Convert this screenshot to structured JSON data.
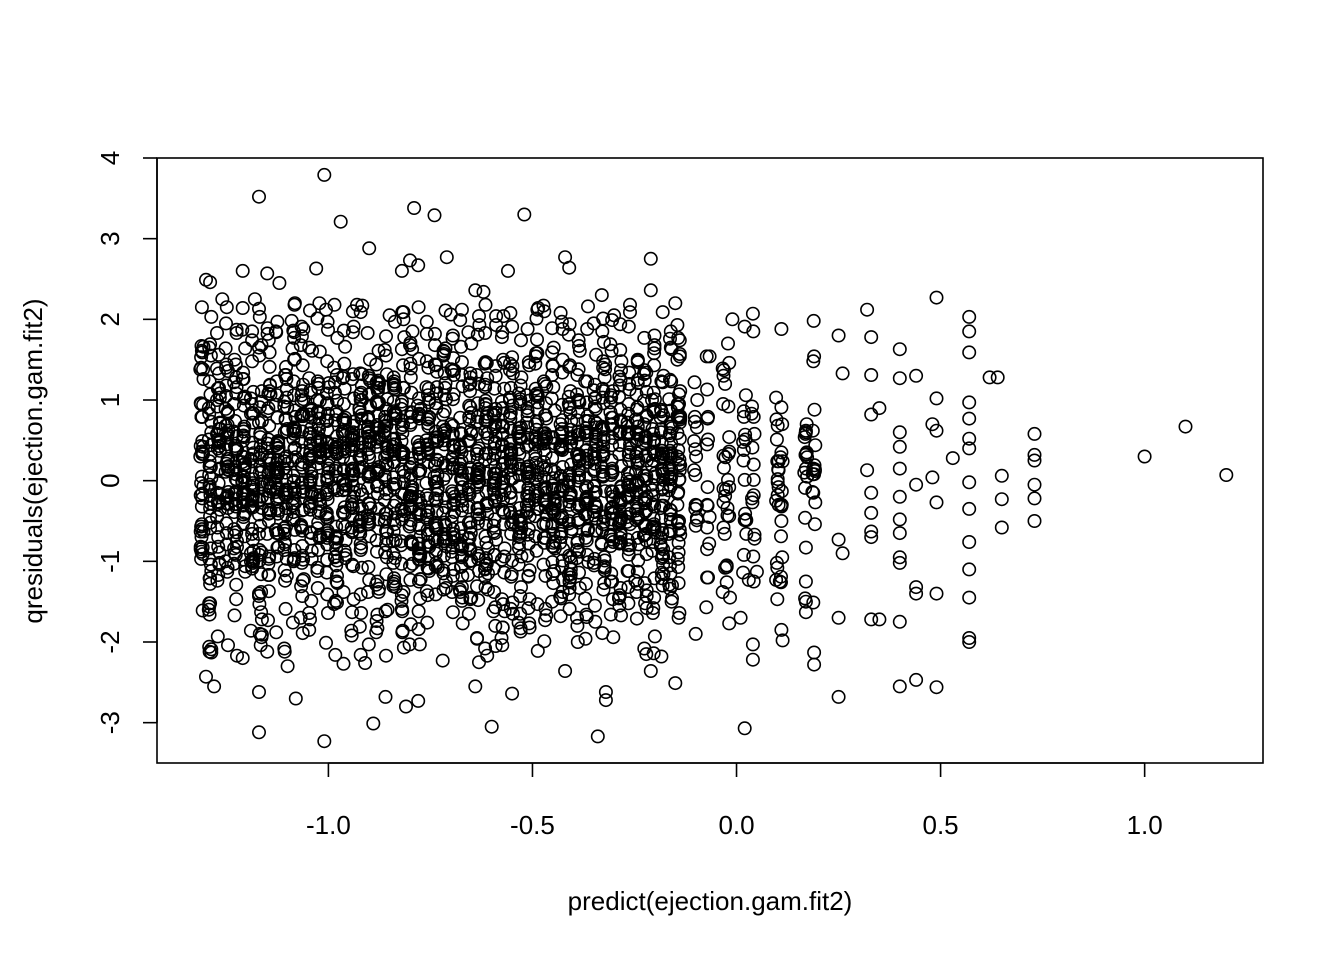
{
  "chart_data": {
    "type": "scatter",
    "title": "",
    "xlabel": "predict(ejection.gam.fit2)",
    "ylabel": "qresiduals(ejection.gam.fit2)",
    "xlim": [
      -1.42,
      1.29
    ],
    "ylim": [
      -3.5,
      4.0
    ],
    "xticks": [
      -1.0,
      -0.5,
      0.0,
      0.5,
      1.0
    ],
    "xtick_labels": [
      "-1.0",
      "-0.5",
      "0.0",
      "0.5",
      "1.0"
    ],
    "yticks": [
      -3,
      -2,
      -1,
      0,
      1,
      2,
      3,
      4
    ],
    "ytick_labels": [
      "-3",
      "-2",
      "-1",
      "0",
      "1",
      "2",
      "3",
      "4"
    ],
    "grid": false,
    "legend": "none",
    "marker": "open-circle",
    "points": [
      [
        -1.17,
        3.52
      ],
      [
        -1.01,
        3.79
      ],
      [
        -0.97,
        3.21
      ],
      [
        -0.79,
        3.38
      ],
      [
        -0.74,
        3.29
      ],
      [
        -0.52,
        3.3
      ],
      [
        -1.03,
        2.63
      ],
      [
        -0.9,
        2.88
      ],
      [
        -0.82,
        2.6
      ],
      [
        -0.8,
        2.73
      ],
      [
        -0.78,
        2.67
      ],
      [
        -0.71,
        2.77
      ],
      [
        -0.56,
        2.6
      ],
      [
        -0.42,
        2.77
      ],
      [
        -0.41,
        2.64
      ],
      [
        -0.21,
        2.75
      ],
      [
        -1.3,
        2.49
      ],
      [
        -1.29,
        2.46
      ],
      [
        -1.21,
        2.6
      ],
      [
        -1.15,
        2.57
      ],
      [
        -1.12,
        2.45
      ],
      [
        -0.64,
        2.36
      ],
      [
        -0.62,
        2.34
      ],
      [
        -0.33,
        2.3
      ],
      [
        -0.21,
        2.36
      ],
      [
        -0.15,
        2.2
      ],
      [
        0.49,
        2.27
      ],
      [
        0.32,
        2.12
      ],
      [
        0.57,
        2.03
      ],
      [
        -1.31,
        2.15
      ],
      [
        -1.26,
        2.25
      ],
      [
        -1.18,
        2.25
      ],
      [
        -1.09,
        1.98
      ],
      [
        -0.93,
        2.18
      ],
      [
        -0.85,
        2.05
      ],
      [
        -0.7,
        2.06
      ],
      [
        -0.3,
        2.05
      ],
      [
        -0.01,
        2.0
      ],
      [
        0.02,
        1.91
      ],
      [
        0.11,
        1.88
      ],
      [
        0.57,
        1.85
      ],
      [
        0.4,
        1.63
      ],
      [
        0.57,
        1.59
      ],
      [
        0.62,
        1.28
      ],
      [
        0.64,
        1.28
      ],
      [
        0.25,
        1.8
      ],
      [
        0.33,
        1.78
      ],
      [
        0.19,
        1.54
      ],
      [
        0.26,
        1.33
      ],
      [
        0.44,
        1.3
      ],
      [
        0.4,
        1.27
      ],
      [
        0.33,
        1.31
      ],
      [
        0.49,
        1.02
      ],
      [
        0.57,
        0.97
      ],
      [
        0.35,
        0.9
      ],
      [
        0.57,
        0.77
      ],
      [
        0.33,
        0.82
      ],
      [
        0.4,
        0.6
      ],
      [
        0.48,
        0.7
      ],
      [
        0.49,
        0.62
      ],
      [
        0.57,
        0.52
      ],
      [
        0.73,
        0.58
      ],
      [
        1.1,
        0.67
      ],
      [
        0.4,
        0.42
      ],
      [
        0.57,
        0.4
      ],
      [
        0.53,
        0.28
      ],
      [
        0.73,
        0.32
      ],
      [
        0.73,
        0.25
      ],
      [
        1.0,
        0.3
      ],
      [
        0.4,
        0.15
      ],
      [
        0.32,
        0.13
      ],
      [
        0.48,
        0.04
      ],
      [
        0.65,
        0.06
      ],
      [
        1.2,
        0.07
      ],
      [
        0.44,
        -0.05
      ],
      [
        0.57,
        -0.02
      ],
      [
        0.73,
        -0.05
      ],
      [
        0.33,
        -0.15
      ],
      [
        0.4,
        -0.2
      ],
      [
        0.49,
        -0.27
      ],
      [
        0.65,
        -0.23
      ],
      [
        0.73,
        -0.22
      ],
      [
        0.57,
        -0.35
      ],
      [
        0.33,
        -0.4
      ],
      [
        0.4,
        -0.48
      ],
      [
        0.73,
        -0.5
      ],
      [
        0.65,
        -0.58
      ],
      [
        0.33,
        -0.63
      ],
      [
        0.4,
        -0.65
      ],
      [
        0.33,
        -0.7
      ],
      [
        0.57,
        -0.76
      ],
      [
        0.25,
        -0.73
      ],
      [
        0.26,
        -0.9
      ],
      [
        0.4,
        -0.95
      ],
      [
        0.4,
        -1.02
      ],
      [
        0.57,
        -1.1
      ],
      [
        0.44,
        -1.32
      ],
      [
        0.44,
        -1.4
      ],
      [
        0.49,
        -1.4
      ],
      [
        0.57,
        -1.45
      ],
      [
        0.33,
        -1.72
      ],
      [
        0.35,
        -1.72
      ],
      [
        0.4,
        -1.75
      ],
      [
        0.25,
        -1.7
      ],
      [
        0.57,
        -1.95
      ],
      [
        0.57,
        -2.0
      ],
      [
        0.19,
        -2.13
      ],
      [
        0.19,
        -2.28
      ],
      [
        0.4,
        -2.55
      ],
      [
        0.44,
        -2.47
      ],
      [
        0.49,
        -2.56
      ],
      [
        0.25,
        -2.68
      ],
      [
        0.02,
        -3.07
      ],
      [
        -0.34,
        -3.17
      ],
      [
        -0.6,
        -3.05
      ],
      [
        -1.01,
        -3.23
      ],
      [
        -1.17,
        -3.12
      ],
      [
        -0.89,
        -3.01
      ],
      [
        -1.17,
        -2.62
      ],
      [
        -1.08,
        -2.7
      ],
      [
        -0.86,
        -2.68
      ],
      [
        -0.81,
        -2.8
      ],
      [
        -0.78,
        -2.73
      ],
      [
        -0.55,
        -2.64
      ],
      [
        -0.64,
        -2.55
      ],
      [
        -0.32,
        -2.62
      ],
      [
        -0.32,
        -2.72
      ],
      [
        -0.15,
        -2.51
      ],
      [
        -0.42,
        -2.36
      ],
      [
        -0.21,
        -2.36
      ],
      [
        -0.91,
        -2.26
      ],
      [
        -1.21,
        -2.2
      ],
      [
        -1.3,
        -2.43
      ],
      [
        -1.28,
        -2.55
      ],
      [
        -1.1,
        -2.3
      ],
      [
        -0.72,
        -2.23
      ],
      [
        -0.59,
        -2.05
      ],
      [
        0.04,
        -2.22
      ],
      [
        0.04,
        -2.03
      ],
      [
        -0.1,
        -1.9
      ],
      [
        0.11,
        -1.85
      ],
      [
        0.01,
        -1.7
      ],
      [
        0.17,
        -1.63
      ],
      [
        0.1,
        -1.47
      ],
      [
        0.17,
        -1.5
      ],
      [
        0.03,
        -1.23
      ],
      [
        -0.07,
        -1.2
      ],
      [
        0.05,
        -1.13
      ],
      [
        0.1,
        -1.08
      ],
      [
        0.17,
        -1.25
      ],
      [
        0.17,
        -0.83
      ]
    ]
  }
}
